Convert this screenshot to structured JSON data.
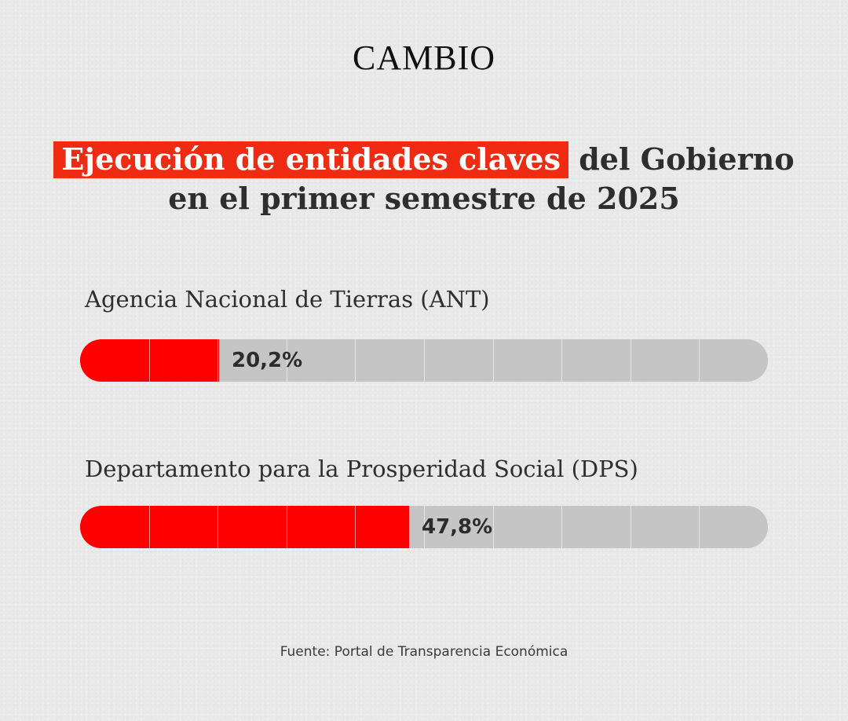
{
  "brand": {
    "logo": "CAMBIO"
  },
  "header": {
    "title_highlight": "Ejecución de entidades claves",
    "title_rest_line1": " del Gobierno",
    "title_line2": "en el primer semestre de 2025"
  },
  "colors": {
    "fill": "#ff0000",
    "track": "#c5c5c5",
    "highlight": "#f02b13"
  },
  "chart_data": {
    "type": "bar",
    "orientation": "horizontal",
    "categories": [
      "Agencia Nacional de Tierras (ANT)",
      "Departamento para la Prosperidad Social (DPS)"
    ],
    "values": [
      20.2,
      47.8
    ],
    "value_labels": [
      "20,2%",
      "47,8%"
    ],
    "xlim": [
      0,
      100
    ],
    "segments": 10
  },
  "footer": {
    "source": "Fuente: Portal de Transparencia Económica"
  }
}
